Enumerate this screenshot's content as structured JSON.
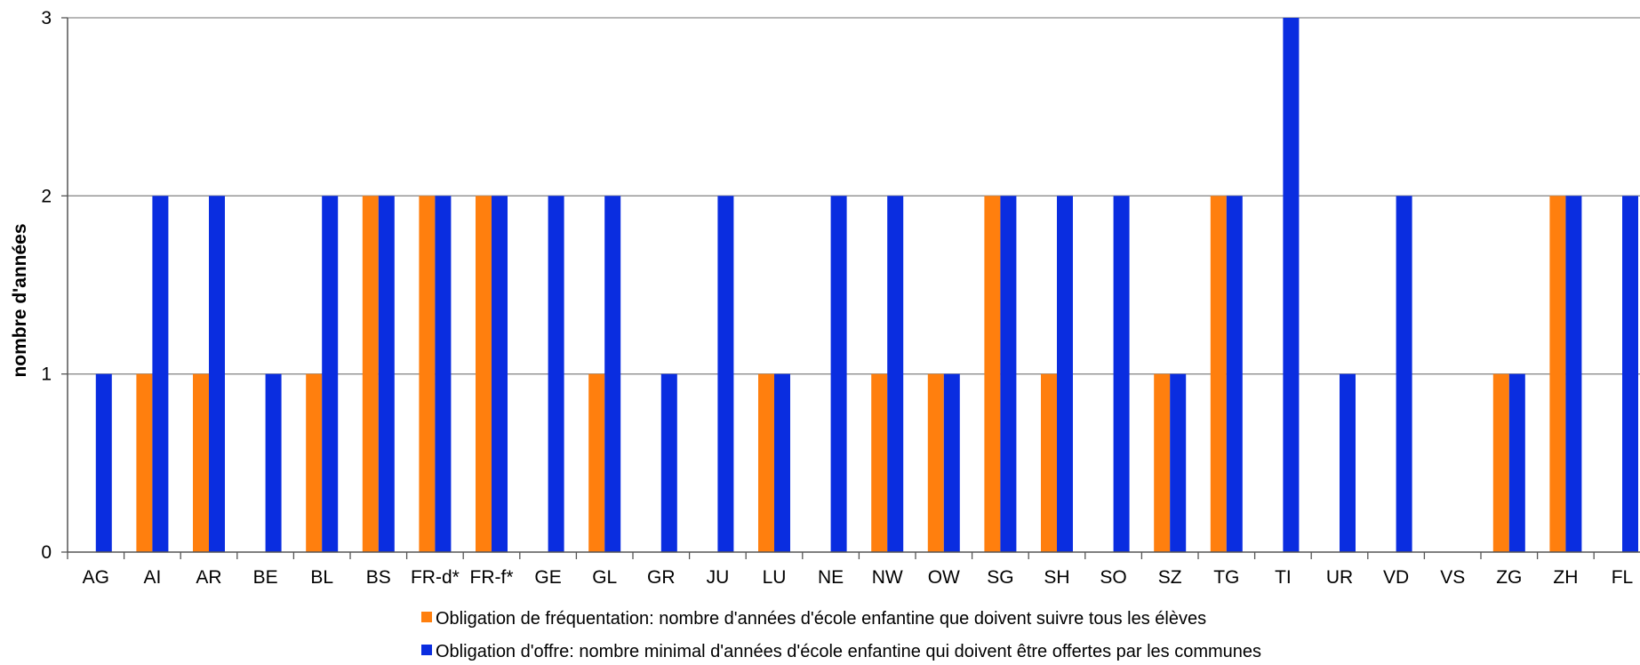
{
  "chart_data": {
    "type": "bar",
    "title": "",
    "xlabel": "",
    "ylabel": "nombre d'années",
    "ylim": [
      0,
      3
    ],
    "yticks": [
      0,
      1,
      2,
      3
    ],
    "grid": true,
    "legend_position": "bottom",
    "categories": [
      "AG",
      "AI",
      "AR",
      "BE",
      "BL",
      "BS",
      "FR-d*",
      "FR-f*",
      "GE",
      "GL",
      "GR",
      "JU",
      "LU",
      "NE",
      "NW",
      "OW",
      "SG",
      "SH",
      "SO",
      "SZ",
      "TG",
      "TI",
      "UR",
      "VD",
      "VS",
      "ZG",
      "ZH",
      "FL"
    ],
    "series": [
      {
        "name": "Obligation de fréquentation: nombre d'années d'école enfantine que doivent suivre tous les élèves",
        "color": "#ff7f0e",
        "values": [
          0,
          1,
          1,
          0,
          1,
          2,
          2,
          2,
          0,
          1,
          0,
          0,
          1,
          0,
          1,
          1,
          2,
          1,
          0,
          1,
          2,
          0,
          0,
          0,
          0,
          1,
          2,
          0
        ]
      },
      {
        "name": "Obligation d'offre: nombre minimal d'années d'école enfantine qui doivent être offertes par les communes",
        "color": "#0a2de0",
        "values": [
          1,
          2,
          2,
          1,
          2,
          2,
          2,
          2,
          2,
          2,
          1,
          2,
          1,
          2,
          2,
          1,
          2,
          2,
          2,
          1,
          2,
          3,
          1,
          2,
          0,
          1,
          2,
          2
        ]
      }
    ]
  }
}
